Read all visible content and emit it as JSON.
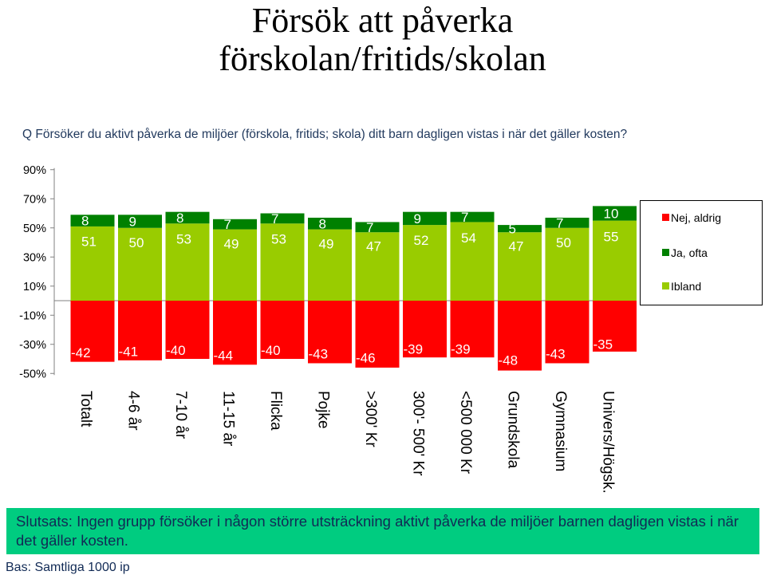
{
  "title": {
    "line1": "Försök att påverka",
    "line2": "förskolan/fritids/skolan"
  },
  "question": "Q Försöker du aktivt påverka de miljöer (förskola, fritids; skola) ditt barn dagligen vistas i när det gäller kosten?",
  "chart_data": {
    "type": "bar",
    "stacked": true,
    "categories": [
      "Totalt",
      "4-6 år",
      "7-10 år",
      "11-15 år",
      "Flicka",
      "Pojke",
      ">300' Kr",
      "300'- 500' Kr",
      "<500 000 Kr",
      "Grundskola",
      "Gymnasium",
      "Univers/Högsk."
    ],
    "series": [
      {
        "name": "Nej, aldrig",
        "color": "#ff0000",
        "values": [
          -42,
          -41,
          -40,
          -44,
          -40,
          -43,
          -46,
          -39,
          -39,
          -48,
          -43,
          -35
        ]
      },
      {
        "name": "Ja, ofta",
        "color": "#008000",
        "values": [
          8,
          9,
          8,
          7,
          7,
          8,
          7,
          9,
          7,
          5,
          7,
          10
        ]
      },
      {
        "name": "Ibland",
        "color": "#99cc00",
        "values": [
          51,
          50,
          53,
          49,
          53,
          49,
          47,
          52,
          54,
          47,
          50,
          55
        ]
      }
    ],
    "yticks": [
      "90%",
      "70%",
      "50%",
      "30%",
      "10%",
      "-10%",
      "-30%",
      "-50%"
    ],
    "ytick_values": [
      90,
      70,
      50,
      30,
      10,
      -10,
      -30,
      -50
    ],
    "ylim": [
      -50,
      90
    ],
    "legend_position": "right",
    "grid": false
  },
  "conclusion": "Slutsats: Ingen grupp försöker i någon större utsträckning aktivt påverka de miljöer barnen dagligen vistas i när det gäller kosten.",
  "base": "Bas: Samtliga 1000 ip"
}
